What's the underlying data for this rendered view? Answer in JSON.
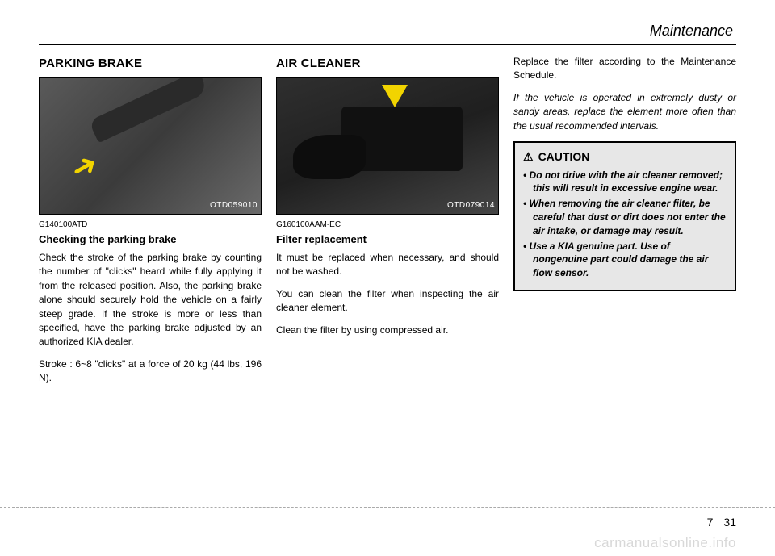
{
  "header": {
    "section": "Maintenance"
  },
  "col1": {
    "title": "PARKING BRAKE",
    "figure_label": "OTD059010",
    "code": "G140100ATD",
    "subheading": "Checking the parking brake",
    "body": "Check the stroke of the parking brake by counting the number of \"clicks\" heard while fully applying it from the released position. Also, the parking brake alone should securely hold the vehicle on a fairly steep grade. If the stroke is more or less than specified, have the parking brake adjusted by an authorized KIA dealer.",
    "stroke": "Stroke : 6~8 \"clicks\" at a force of 20 kg (44 lbs, 196 N)."
  },
  "col2": {
    "title": "AIR CLEANER",
    "figure_label": "OTD079014",
    "code": "G160100AAM-EC",
    "subheading": "Filter replacement",
    "p1": "It must be replaced when necessary, and should not be washed.",
    "p2": "You can clean the filter when inspecting the air cleaner element.",
    "p3": "Clean the filter by using compressed air."
  },
  "col3": {
    "p1": "Replace the filter according to the Maintenance Schedule.",
    "p2_italic": "If the vehicle is operated in extremely dusty or sandy areas, replace the element more often than the usual recommended intervals.",
    "caution": {
      "title": "CAUTION",
      "items": [
        "Do not drive with the air cleaner removed; this will result in excessive engine wear.",
        "When removing the air cleaner filter, be careful that dust or dirt does not enter the air intake, or damage may result.",
        "Use a KIA genuine part. Use of nongenuine part could damage the air flow sensor."
      ]
    }
  },
  "footer": {
    "section": "7",
    "page": "31"
  },
  "watermark": "carmanualsonline.info"
}
